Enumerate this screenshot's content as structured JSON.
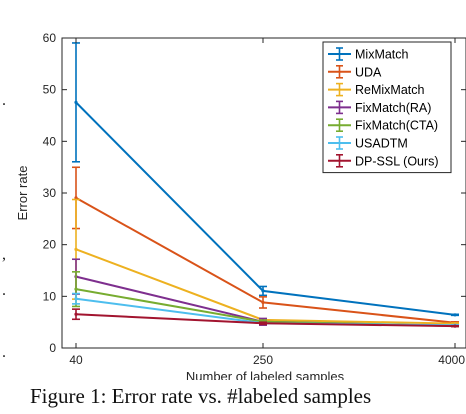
{
  "chart_data": {
    "type": "line",
    "xlabel": "Number of labeled samples",
    "ylabel": "Error rate",
    "categories": [
      "40",
      "250",
      "4000"
    ],
    "ylim": [
      0,
      60
    ],
    "yticks": [
      "0",
      "10",
      "20",
      "30",
      "40",
      "50",
      "60"
    ],
    "grid": false,
    "legend_position": "top-right",
    "series": [
      {
        "name": "MixMatch",
        "color": "#0072BD",
        "values": [
          47.54,
          11.05,
          6.42
        ],
        "errors": [
          11.5,
          0.86,
          0.1
        ]
      },
      {
        "name": "UDA",
        "color": "#D95319",
        "values": [
          29.05,
          8.82,
          4.88
        ],
        "errors": [
          5.93,
          1.08,
          0.18
        ]
      },
      {
        "name": "ReMixMatch",
        "color": "#EDB120",
        "values": [
          19.1,
          5.44,
          4.72
        ],
        "errors": [
          9.64,
          0.05,
          0.13
        ]
      },
      {
        "name": "FixMatch(RA)",
        "color": "#7E2F8E",
        "values": [
          13.81,
          5.07,
          4.26
        ],
        "errors": [
          3.37,
          0.65,
          0.05
        ]
      },
      {
        "name": "FixMatch(CTA)",
        "color": "#77AC30",
        "values": [
          11.39,
          5.07,
          4.31
        ],
        "errors": [
          3.35,
          0.33,
          0.15
        ]
      },
      {
        "name": "USADTM",
        "color": "#4DBEEE",
        "values": [
          9.54,
          4.8,
          4.4
        ],
        "errors": [
          1.0,
          0.1,
          0.1
        ]
      },
      {
        "name": "DP-SSL (Ours)",
        "color": "#A2142F",
        "values": [
          6.54,
          4.78,
          4.23
        ],
        "errors": [
          0.98,
          0.21,
          0.08
        ]
      }
    ]
  },
  "caption": "Figure 1: Error rate vs. #labeled samples",
  "margin_marks": [
    ".",
    ",",
    ".",
    "."
  ]
}
